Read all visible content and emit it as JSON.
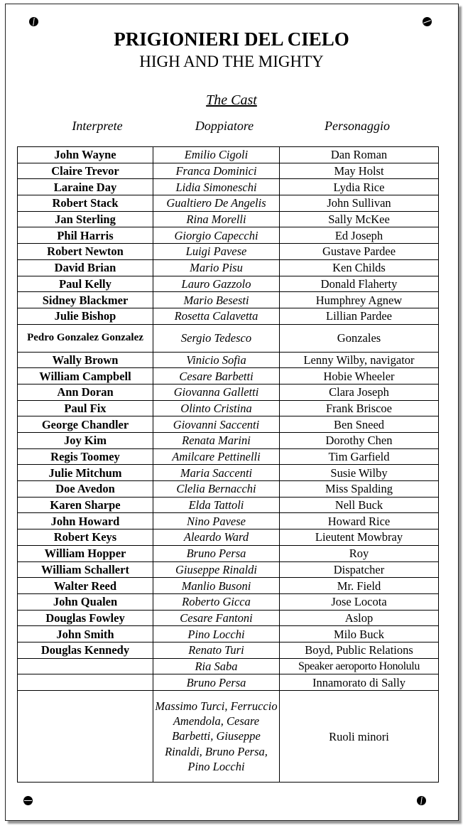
{
  "title": "PRIGIONIERI DEL CIELO",
  "subtitle": "HIGH AND THE MIGHTY",
  "section": "The Cast",
  "headers": [
    "Interprete",
    "Doppiatore",
    "Personaggio"
  ],
  "rows": [
    [
      "John Wayne",
      "Emilio Cigoli",
      "Dan Roman"
    ],
    [
      "Claire Trevor",
      "Franca Dominici",
      "May Holst"
    ],
    [
      "Laraine Day",
      "Lidia Simoneschi",
      "Lydia Rice"
    ],
    [
      "Robert Stack",
      "Gualtiero De Angelis",
      "John Sullivan"
    ],
    [
      "Jan Sterling",
      "Rina Morelli",
      "Sally McKee"
    ],
    [
      "Phil Harris",
      "Giorgio Capecchi",
      "Ed Joseph"
    ],
    [
      "Robert Newton",
      "Luigi Pavese",
      "Gustave Pardee"
    ],
    [
      "David Brian",
      "Mario Pisu",
      "Ken Childs"
    ],
    [
      "Paul Kelly",
      "Lauro Gazzolo",
      "Donald Flaherty"
    ],
    [
      "Sidney Blackmer",
      "Mario Besesti",
      "Humphrey Agnew"
    ],
    [
      "Julie Bishop",
      "Rosetta Calavetta",
      "Lillian Pardee"
    ],
    [
      "Pedro Gonzalez Gonzalez",
      "Sergio Tedesco",
      "Gonzales"
    ],
    [
      "Wally Brown",
      "Vinicio Sofia",
      "Lenny Wilby, navigator"
    ],
    [
      "William Campbell",
      "Cesare Barbetti",
      "Hobie Wheeler"
    ],
    [
      "Ann Doran",
      "Giovanna Galletti",
      "Clara Joseph"
    ],
    [
      "Paul Fix",
      "Olinto Cristina",
      "Frank Briscoe"
    ],
    [
      "George Chandler",
      "Giovanni Saccenti",
      "Ben Sneed"
    ],
    [
      "Joy Kim",
      "Renata Marini",
      "Dorothy Chen"
    ],
    [
      "Regis Toomey",
      "Amilcare Pettinelli",
      "Tim Garfield"
    ],
    [
      "Julie Mitchum",
      "Maria Saccenti",
      "Susie Wilby"
    ],
    [
      "Doe Avedon",
      "Clelia Bernacchi",
      "Miss Spalding"
    ],
    [
      "Karen Sharpe",
      "Elda Tattoli",
      "Nell Buck"
    ],
    [
      "John Howard",
      "Nino Pavese",
      "Howard Rice"
    ],
    [
      "Robert Keys",
      "Aleardo Ward",
      "Lieutent Mowbray"
    ],
    [
      "William Hopper",
      "Bruno Persa",
      "Roy"
    ],
    [
      "William Schallert",
      "Giuseppe Rinaldi",
      "Dispatcher"
    ],
    [
      "Walter Reed",
      "Manlio Busoni",
      "Mr. Field"
    ],
    [
      "John Qualen",
      "Roberto Gicca",
      "Jose Locota"
    ],
    [
      "Douglas Fowley",
      "Cesare Fantoni",
      "Aslop"
    ],
    [
      "John Smith",
      "Pino Locchi",
      "Milo Buck"
    ],
    [
      "Douglas Kennedy",
      "Renato Turi",
      "Boyd, Public Relations"
    ],
    [
      "",
      "Ria Saba",
      "Speaker aeroporto Honolulu"
    ],
    [
      "",
      "Bruno Persa",
      "Innamorato di Sally"
    ],
    [
      "",
      "Massimo Turci, Ferruccio Amendola, Cesare Barbetti, Giuseppe Rinaldi, Bruno Persa, Pino Locchi",
      "Ruoli minori"
    ]
  ]
}
